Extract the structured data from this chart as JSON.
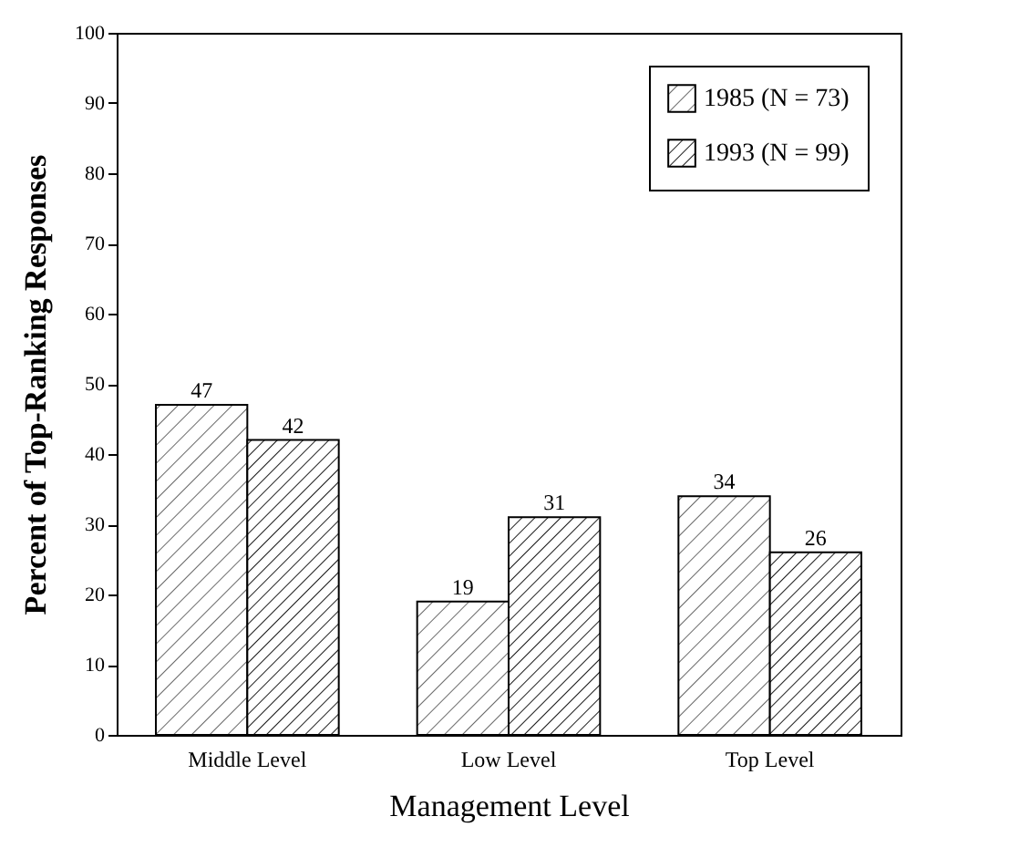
{
  "chart_data": {
    "type": "bar",
    "xlabel": "Management Level",
    "ylabel": "Percent of Top-Ranking Responses",
    "categories": [
      "Middle Level",
      "Low Level",
      "Top Level"
    ],
    "series": [
      {
        "name": "1985 (N = 73)",
        "color": "#000000",
        "values": [
          47,
          19,
          34
        ]
      },
      {
        "name": "1993 (N = 99)",
        "color": "#000000",
        "values": [
          42,
          31,
          26
        ]
      }
    ],
    "ylim": [
      0,
      100
    ],
    "yticks": [
      0,
      10,
      20,
      30,
      40,
      50,
      60,
      70,
      80,
      90,
      100
    ],
    "data_labels": true,
    "legend": "top right",
    "grid": false
  }
}
